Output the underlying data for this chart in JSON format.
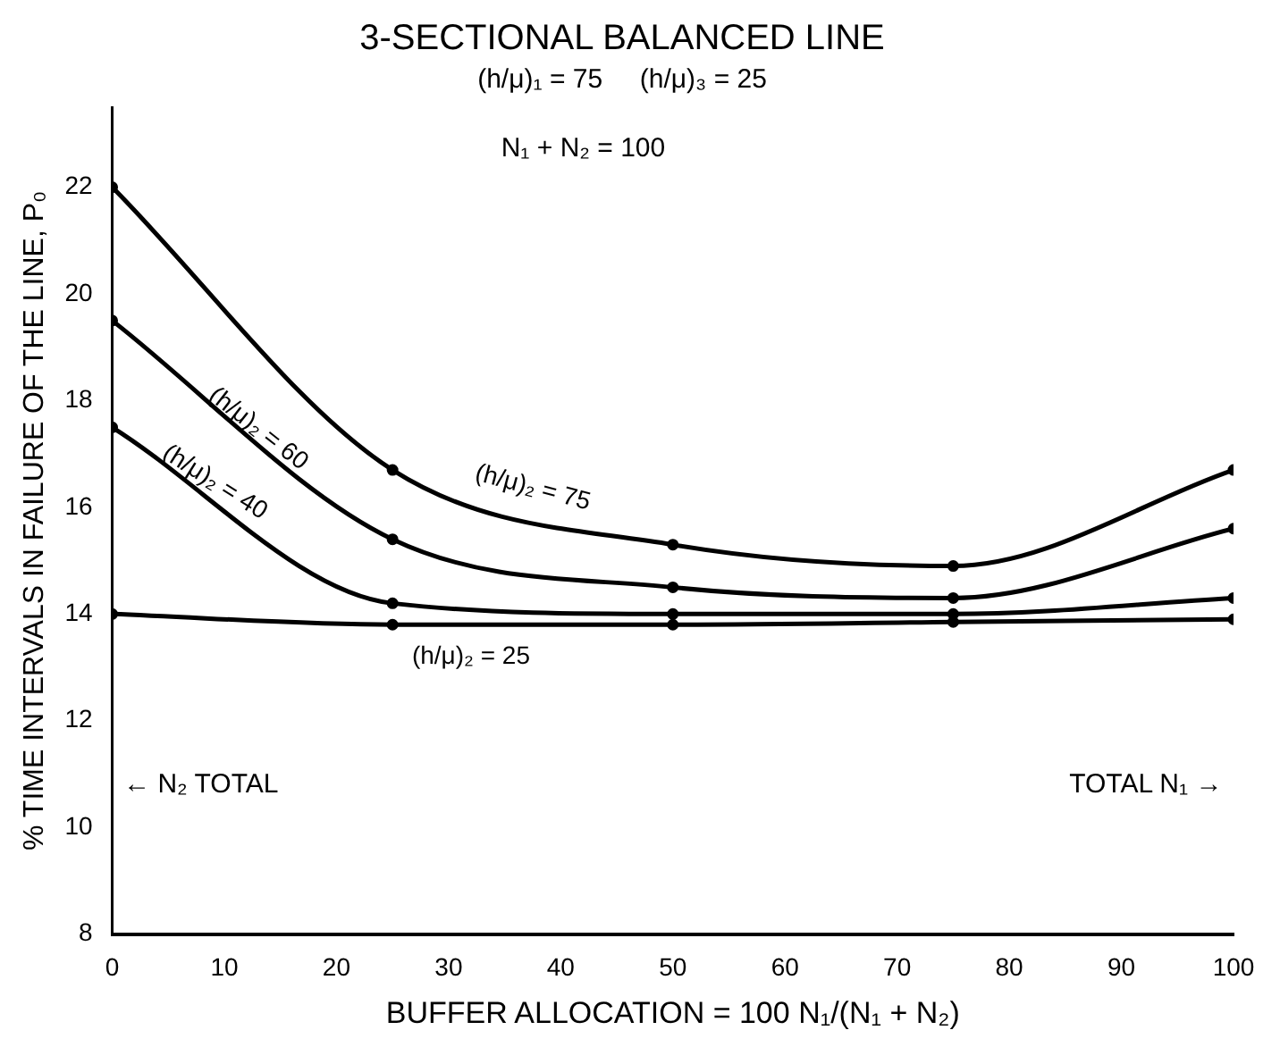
{
  "chart_data": {
    "type": "line",
    "title": "3-SECTIONAL BALANCED LINE",
    "subtitle": "(h/μ)₁ = 75     (h/μ)₃ = 25",
    "xlabel": "BUFFER ALLOCATION = 100 N₁/(N₁ + N₂)",
    "ylabel": "% TIME INTERVALS IN FAILURE OF THE LINE, P₀",
    "x": [
      0,
      25,
      50,
      75,
      100
    ],
    "series": [
      {
        "name": "(h/μ)₂ = 75",
        "color": "#000000",
        "values": [
          22,
          16.7,
          15.3,
          14.9,
          16.7
        ]
      },
      {
        "name": "(h/μ)₂ = 60",
        "color": "#000000",
        "values": [
          19.5,
          15.4,
          14.5,
          14.3,
          15.6
        ]
      },
      {
        "name": "(h/μ)₂ = 40",
        "color": "#000000",
        "values": [
          17.5,
          14.2,
          14.0,
          14.0,
          14.3
        ]
      },
      {
        "name": "(h/μ)₂ = 25",
        "color": "#000000",
        "values": [
          14.0,
          13.8,
          13.8,
          13.85,
          13.9
        ]
      }
    ],
    "xlim": [
      0,
      100
    ],
    "xticks": [
      0,
      10,
      20,
      30,
      40,
      50,
      60,
      70,
      80,
      90,
      100
    ],
    "ylim": [
      8,
      23.5
    ],
    "yticks": [
      8,
      10,
      12,
      14,
      16,
      18,
      20,
      22
    ],
    "annotations": [
      "N₁ + N₂ = 100",
      "← N₂ TOTAL",
      "TOTAL N₁ →"
    ],
    "grid": false,
    "legend": false,
    "marker": "circle",
    "line_style": "solid"
  }
}
